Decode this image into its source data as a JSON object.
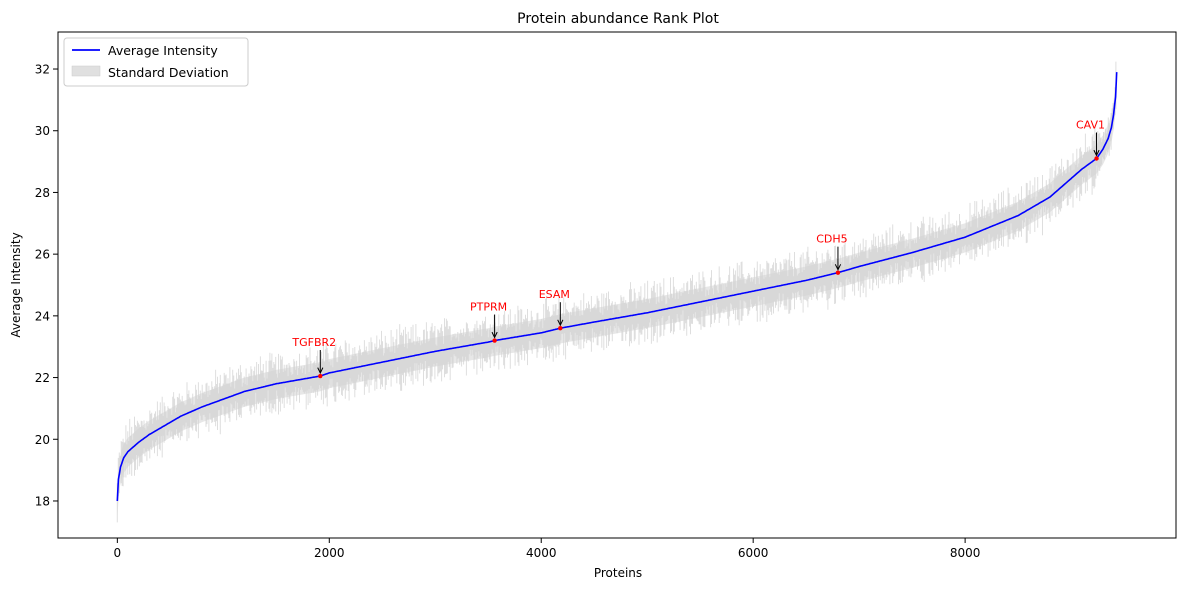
{
  "chart_data": {
    "type": "line",
    "title": "Protein abundance Rank Plot",
    "xlabel": "Proteins",
    "ylabel": "Average Intensity",
    "xlim": [
      -560,
      9990
    ],
    "ylim": [
      16.8,
      33.2
    ],
    "xticks": [
      0,
      2000,
      4000,
      6000,
      8000
    ],
    "yticks": [
      18,
      20,
      22,
      24,
      26,
      28,
      30,
      32
    ],
    "grid": false,
    "legend_position": "top-left",
    "n_proteins": 9430,
    "series": [
      {
        "name": "Average Intensity",
        "color": "#0000ff",
        "x": [
          0,
          10,
          30,
          60,
          100,
          150,
          200,
          300,
          400,
          500,
          600,
          800,
          1000,
          1200,
          1500,
          1800,
          1915,
          2000,
          2500,
          3000,
          3500,
          3560,
          4000,
          4180,
          4500,
          5000,
          5500,
          6000,
          6500,
          6800,
          7000,
          7500,
          8000,
          8500,
          8800,
          9000,
          9100,
          9200,
          9240,
          9300,
          9350,
          9380,
          9400,
          9420,
          9430
        ],
        "y": [
          18.0,
          18.7,
          19.1,
          19.4,
          19.6,
          19.75,
          19.9,
          20.15,
          20.35,
          20.55,
          20.75,
          21.05,
          21.3,
          21.55,
          21.8,
          21.98,
          22.05,
          22.15,
          22.5,
          22.85,
          23.15,
          23.2,
          23.45,
          23.6,
          23.8,
          24.1,
          24.45,
          24.8,
          25.15,
          25.4,
          25.6,
          26.05,
          26.55,
          27.25,
          27.85,
          28.45,
          28.75,
          29.0,
          29.1,
          29.4,
          29.75,
          30.1,
          30.5,
          31.1,
          31.9
        ]
      },
      {
        "name": "Standard Deviation",
        "type": "band",
        "color": "#d3d3d3",
        "approx_half_width": 0.45,
        "max_half_width": 1.3
      }
    ],
    "annotations": [
      {
        "label": "TGFBR2",
        "x": 1915,
        "y": 22.05,
        "color": "#ff0000"
      },
      {
        "label": "PTPRM",
        "x": 3560,
        "y": 23.2,
        "color": "#ff0000"
      },
      {
        "label": "ESAM",
        "x": 4180,
        "y": 23.6,
        "color": "#ff0000"
      },
      {
        "label": "CDH5",
        "x": 6800,
        "y": 25.4,
        "color": "#ff0000"
      },
      {
        "label": "CAV1",
        "x": 9240,
        "y": 29.1,
        "color": "#ff0000"
      }
    ]
  }
}
